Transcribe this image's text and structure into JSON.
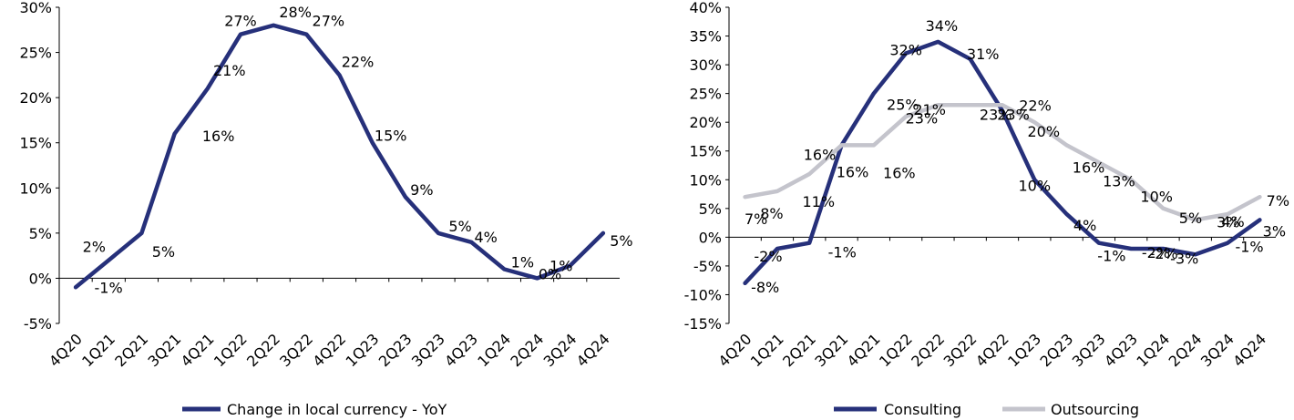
{
  "chart_data": [
    {
      "type": "line",
      "title": "",
      "xlabel": "",
      "ylabel": "",
      "ylim": [
        -5,
        30
      ],
      "y_ticks": [
        "-5%",
        "0%",
        "5%",
        "10%",
        "15%",
        "20%",
        "25%",
        "30%"
      ],
      "y_tick_values": [
        -5,
        0,
        5,
        10,
        15,
        20,
        25,
        30
      ],
      "grid": false,
      "legend_position": "bottom",
      "categories": [
        "4Q20",
        "1Q21",
        "2Q21",
        "3Q21",
        "4Q21",
        "1Q22",
        "2Q22",
        "3Q22",
        "4Q22",
        "1Q23",
        "2Q23",
        "3Q23",
        "4Q23",
        "1Q24",
        "2Q24",
        "3Q24",
        "4Q24"
      ],
      "series": [
        {
          "name": "Change in local currency - YoY",
          "color": "#26307a",
          "values": [
            -1,
            2,
            5,
            16,
            21,
            27,
            28,
            27,
            22.5,
            15,
            9,
            5,
            4,
            1,
            0,
            1.4,
            5
          ],
          "labels": [
            "-1%",
            "2%",
            "5%",
            "16%",
            "21%",
            "27%",
            "28%",
            "27%",
            "22%",
            "15%",
            "9%",
            "5%",
            "4%",
            "1%",
            "0%",
            "1%",
            "5%"
          ]
        }
      ]
    },
    {
      "type": "line",
      "title": "",
      "xlabel": "",
      "ylabel": "",
      "ylim": [
        -15,
        40
      ],
      "y_ticks": [
        "-15%",
        "-10%",
        "-5%",
        "0%",
        "5%",
        "10%",
        "15%",
        "20%",
        "25%",
        "30%",
        "35%",
        "40%"
      ],
      "y_tick_values": [
        -15,
        -10,
        -5,
        0,
        5,
        10,
        15,
        20,
        25,
        30,
        35,
        40
      ],
      "grid": false,
      "legend_position": "bottom",
      "categories": [
        "4Q20",
        "1Q21",
        "2Q21",
        "3Q21",
        "4Q21",
        "1Q22",
        "2Q22",
        "3Q22",
        "4Q22",
        "1Q23",
        "2Q23",
        "3Q23",
        "4Q23",
        "1Q24",
        "2Q24",
        "3Q24",
        "4Q24"
      ],
      "series": [
        {
          "name": "Consulting",
          "color": "#26307a",
          "values": [
            -8,
            -2,
            -1,
            16,
            25,
            32,
            34,
            31,
            22,
            10,
            4,
            -1,
            -2,
            -2,
            -3,
            -1,
            3
          ],
          "labels": [
            "-8%",
            "-2%",
            "-1%",
            "16%",
            "25%",
            "32%",
            "34%",
            "31%",
            "22%",
            "10%",
            "4%",
            "-1%",
            "-2%",
            "-2%",
            "-3%",
            "-1%",
            "3%"
          ]
        },
        {
          "name": "Outsourcing",
          "color": "#c4c4cc",
          "values": [
            7,
            8,
            11,
            16,
            16,
            21,
            23,
            23,
            23,
            20,
            16,
            13,
            10,
            5,
            3,
            4,
            7
          ],
          "labels": [
            "7%",
            "8%",
            "11%",
            "16%",
            "16%",
            "21%",
            "23%",
            "23%",
            "23%",
            "20%",
            "16%",
            "13%",
            "10%",
            "5%",
            "3%",
            "4%",
            "7%"
          ]
        }
      ]
    }
  ]
}
